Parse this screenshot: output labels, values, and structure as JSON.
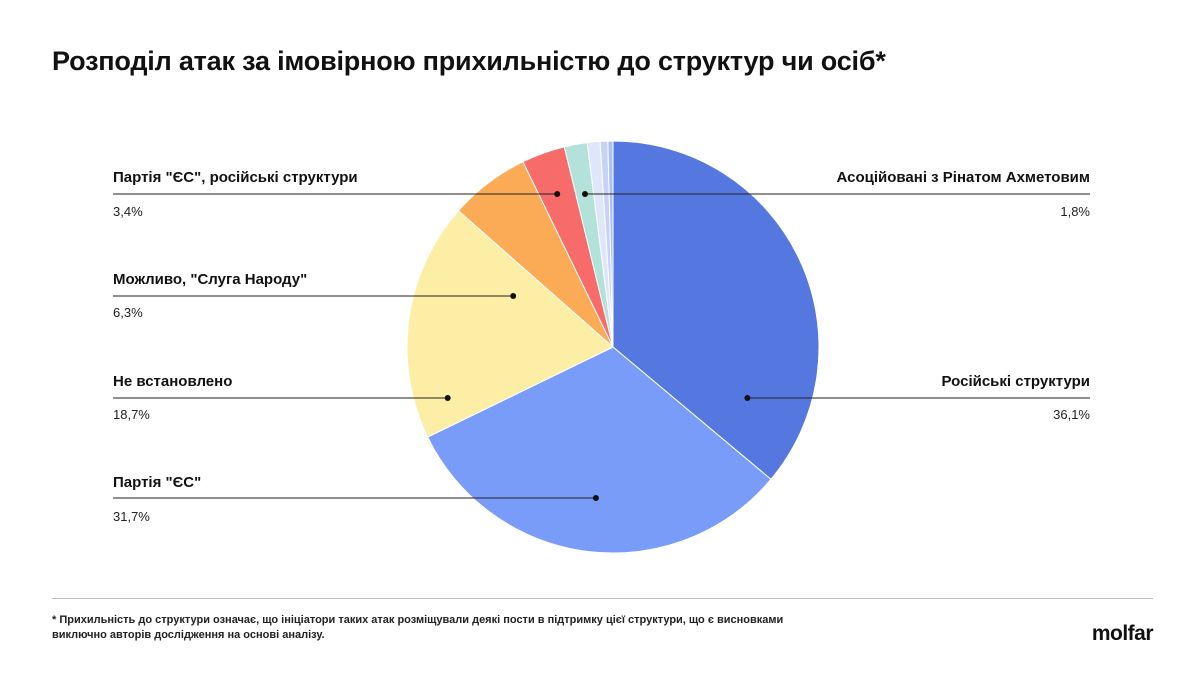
{
  "title": "Розподіл атак за імовірною прихильністю до структур чи осіб*",
  "footnote": "* Прихильність до структури означає, що ініціатори таких атак розміщували деякі пости в підтримку цієї структури, що є висновками виключно авторів дослідження на основі аналізу.",
  "logo": "molfar",
  "chart_data": {
    "type": "pie",
    "start_angle_deg": 0,
    "direction": "clockwise",
    "slices": [
      {
        "label": "Російські структури",
        "value": 36.1,
        "value_label": "36,1%",
        "color": "#5578e0",
        "labeled": true
      },
      {
        "label": "Партія \"ЄС\"",
        "value": 31.7,
        "value_label": "31,7%",
        "color": "#799cf9",
        "labeled": true
      },
      {
        "label": "Не встановлено",
        "value": 18.7,
        "value_label": "18,7%",
        "color": "#fdeea6",
        "labeled": true
      },
      {
        "label": "Можливо, \"Слуга Народу\"",
        "value": 6.3,
        "value_label": "6,3%",
        "color": "#fbaa55",
        "labeled": true
      },
      {
        "label": "Партія \"ЄС\", російські структури",
        "value": 3.4,
        "value_label": "3,4%",
        "color": "#f76b6b",
        "labeled": true
      },
      {
        "label": "Асоційовані з Рінатом Ахметовим",
        "value": 1.8,
        "value_label": "1,8%",
        "color": "#b2e2da",
        "labeled": true
      },
      {
        "label": "",
        "value": 1.0,
        "value_label": "",
        "color": "#dde6fb",
        "labeled": false
      },
      {
        "label": "",
        "value": 0.6,
        "value_label": "",
        "color": "#c6d2f6",
        "labeled": false
      },
      {
        "label": "",
        "value": 0.4,
        "value_label": "",
        "color": "#aebff2",
        "labeled": false
      }
    ]
  }
}
